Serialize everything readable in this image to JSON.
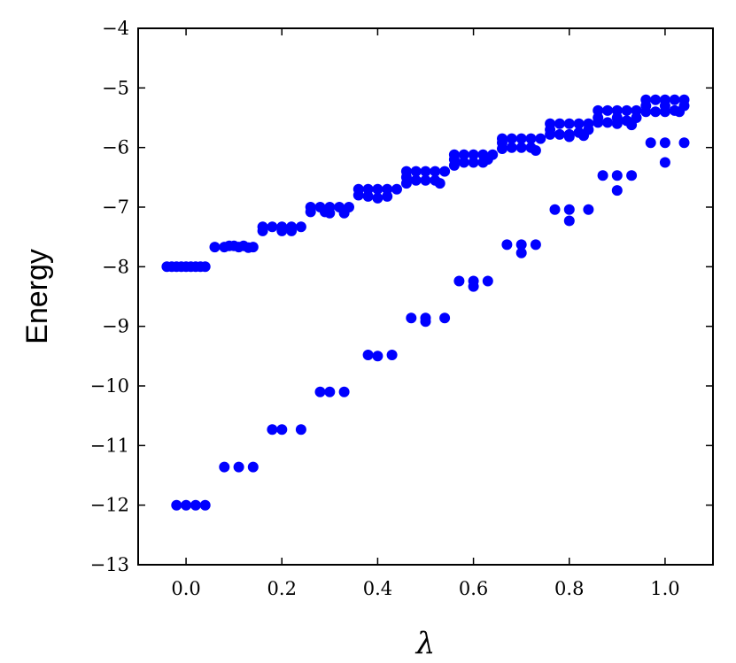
{
  "chart_data": {
    "type": "scatter",
    "title": "",
    "xlabel": "λ",
    "ylabel": "Energy",
    "xlim": [
      -0.1,
      1.1
    ],
    "ylim": [
      -13,
      -4
    ],
    "x_ticks": [
      "0.0",
      "0.2",
      "0.4",
      "0.6",
      "0.8",
      "1.0"
    ],
    "y_ticks": [
      "−4",
      "−5",
      "−6",
      "−7",
      "−8",
      "−9",
      "−10",
      "−11",
      "−12",
      "−13"
    ],
    "grid": false,
    "legend": "none",
    "marker_color": "#0000ff",
    "series": [
      {
        "points": [
          [
            -0.04,
            -8.0
          ],
          [
            -0.03,
            -8.0
          ],
          [
            -0.02,
            -8.0
          ],
          [
            -0.01,
            -8.0
          ],
          [
            0.0,
            -8.0
          ],
          [
            0.01,
            -8.0
          ],
          [
            0.02,
            -8.0
          ],
          [
            0.03,
            -8.0
          ],
          [
            0.04,
            -8.0
          ],
          [
            0.06,
            -7.67
          ],
          [
            0.08,
            -7.67
          ],
          [
            0.09,
            -7.65
          ],
          [
            0.1,
            -7.65
          ],
          [
            0.11,
            -7.67
          ],
          [
            0.12,
            -7.65
          ],
          [
            0.13,
            -7.68
          ],
          [
            0.14,
            -7.67
          ],
          [
            0.16,
            -7.4
          ],
          [
            0.16,
            -7.33
          ],
          [
            0.18,
            -7.33
          ],
          [
            0.2,
            -7.33
          ],
          [
            0.2,
            -7.4
          ],
          [
            0.22,
            -7.33
          ],
          [
            0.22,
            -7.4
          ],
          [
            0.24,
            -7.33
          ],
          [
            0.26,
            -7.0
          ],
          [
            0.26,
            -7.08
          ],
          [
            0.28,
            -7.0
          ],
          [
            0.29,
            -7.08
          ],
          [
            0.3,
            -7.0
          ],
          [
            0.3,
            -7.1
          ],
          [
            0.32,
            -7.0
          ],
          [
            0.33,
            -7.1
          ],
          [
            0.34,
            -7.0
          ],
          [
            0.36,
            -6.7
          ],
          [
            0.36,
            -6.8
          ],
          [
            0.38,
            -6.7
          ],
          [
            0.38,
            -6.82
          ],
          [
            0.4,
            -6.7
          ],
          [
            0.4,
            -6.85
          ],
          [
            0.42,
            -6.7
          ],
          [
            0.42,
            -6.82
          ],
          [
            0.44,
            -6.7
          ],
          [
            0.46,
            -6.4
          ],
          [
            0.46,
            -6.5
          ],
          [
            0.46,
            -6.6
          ],
          [
            0.48,
            -6.4
          ],
          [
            0.48,
            -6.55
          ],
          [
            0.5,
            -6.4
          ],
          [
            0.5,
            -6.55
          ],
          [
            0.52,
            -6.4
          ],
          [
            0.52,
            -6.55
          ],
          [
            0.53,
            -6.6
          ],
          [
            0.54,
            -6.4
          ],
          [
            0.56,
            -6.12
          ],
          [
            0.56,
            -6.2
          ],
          [
            0.56,
            -6.3
          ],
          [
            0.58,
            -6.12
          ],
          [
            0.58,
            -6.25
          ],
          [
            0.6,
            -6.12
          ],
          [
            0.6,
            -6.25
          ],
          [
            0.62,
            -6.12
          ],
          [
            0.62,
            -6.25
          ],
          [
            0.63,
            -6.2
          ],
          [
            0.64,
            -6.12
          ],
          [
            0.66,
            -5.85
          ],
          [
            0.66,
            -5.92
          ],
          [
            0.66,
            -6.02
          ],
          [
            0.68,
            -5.85
          ],
          [
            0.68,
            -6.0
          ],
          [
            0.7,
            -5.85
          ],
          [
            0.7,
            -6.0
          ],
          [
            0.72,
            -5.85
          ],
          [
            0.72,
            -6.0
          ],
          [
            0.73,
            -6.05
          ],
          [
            0.74,
            -5.85
          ],
          [
            0.76,
            -5.6
          ],
          [
            0.76,
            -5.7
          ],
          [
            0.76,
            -5.78
          ],
          [
            0.78,
            -5.6
          ],
          [
            0.78,
            -5.78
          ],
          [
            0.8,
            -5.6
          ],
          [
            0.8,
            -5.78
          ],
          [
            0.8,
            -5.82
          ],
          [
            0.82,
            -5.6
          ],
          [
            0.82,
            -5.75
          ],
          [
            0.83,
            -5.8
          ],
          [
            0.84,
            -5.6
          ],
          [
            0.84,
            -5.7
          ],
          [
            0.86,
            -5.38
          ],
          [
            0.86,
            -5.5
          ],
          [
            0.86,
            -5.58
          ],
          [
            0.88,
            -5.38
          ],
          [
            0.88,
            -5.58
          ],
          [
            0.9,
            -5.38
          ],
          [
            0.9,
            -5.5
          ],
          [
            0.9,
            -5.6
          ],
          [
            0.92,
            -5.38
          ],
          [
            0.92,
            -5.55
          ],
          [
            0.93,
            -5.62
          ],
          [
            0.94,
            -5.38
          ],
          [
            0.94,
            -5.5
          ],
          [
            0.96,
            -5.2
          ],
          [
            0.96,
            -5.3
          ],
          [
            0.96,
            -5.4
          ],
          [
            0.98,
            -5.2
          ],
          [
            0.98,
            -5.4
          ],
          [
            1.0,
            -5.2
          ],
          [
            1.0,
            -5.3
          ],
          [
            1.0,
            -5.4
          ],
          [
            1.02,
            -5.2
          ],
          [
            1.02,
            -5.38
          ],
          [
            1.03,
            -5.4
          ],
          [
            1.04,
            -5.2
          ],
          [
            1.04,
            -5.3
          ],
          [
            -0.02,
            -12.0
          ],
          [
            0.0,
            -12.0
          ],
          [
            0.02,
            -12.0
          ],
          [
            0.04,
            -12.0
          ],
          [
            0.08,
            -11.36
          ],
          [
            0.11,
            -11.36
          ],
          [
            0.14,
            -11.36
          ],
          [
            0.18,
            -10.73
          ],
          [
            0.2,
            -10.73
          ],
          [
            0.24,
            -10.73
          ],
          [
            0.28,
            -10.1
          ],
          [
            0.3,
            -10.1
          ],
          [
            0.33,
            -10.1
          ],
          [
            0.38,
            -9.48
          ],
          [
            0.4,
            -9.5
          ],
          [
            0.43,
            -9.48
          ],
          [
            0.47,
            -8.86
          ],
          [
            0.5,
            -8.86
          ],
          [
            0.5,
            -8.92
          ],
          [
            0.54,
            -8.86
          ],
          [
            0.57,
            -8.24
          ],
          [
            0.6,
            -8.24
          ],
          [
            0.6,
            -8.33
          ],
          [
            0.63,
            -8.24
          ],
          [
            0.67,
            -7.63
          ],
          [
            0.7,
            -7.63
          ],
          [
            0.7,
            -7.77
          ],
          [
            0.73,
            -7.63
          ],
          [
            0.77,
            -7.04
          ],
          [
            0.8,
            -7.04
          ],
          [
            0.8,
            -7.23
          ],
          [
            0.84,
            -7.04
          ],
          [
            0.87,
            -6.47
          ],
          [
            0.9,
            -6.47
          ],
          [
            0.9,
            -6.72
          ],
          [
            0.93,
            -6.47
          ],
          [
            0.97,
            -5.92
          ],
          [
            1.0,
            -5.92
          ],
          [
            1.0,
            -6.25
          ],
          [
            1.04,
            -5.92
          ]
        ]
      }
    ]
  }
}
